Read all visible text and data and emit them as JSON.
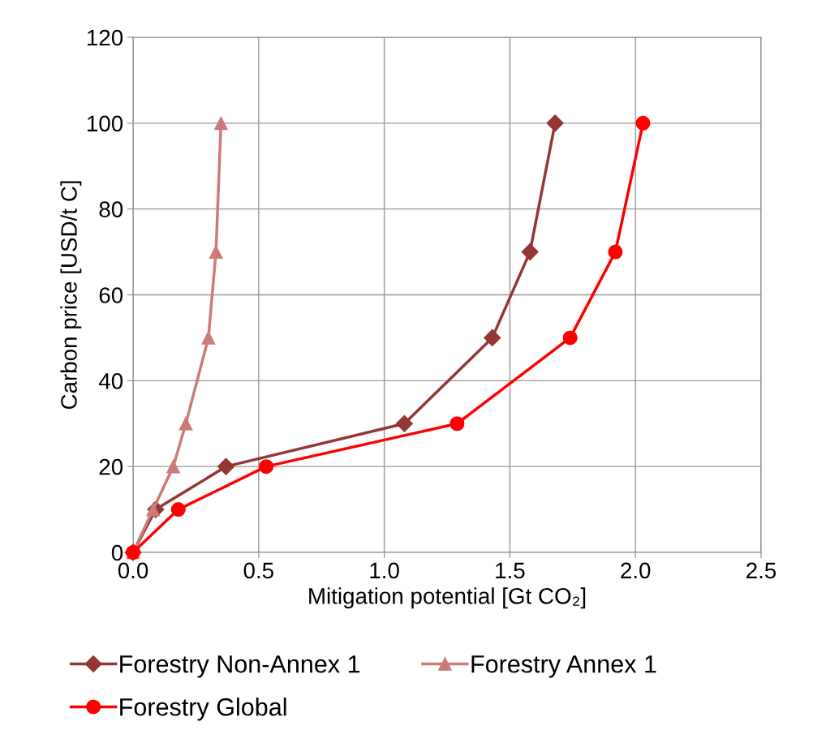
{
  "chart_data": {
    "type": "line",
    "xlabel": "Mitigation potential [Gt CO₂]",
    "ylabel": "Carbon price [USD/t C]",
    "xlim": [
      0,
      2.5
    ],
    "xticks": [
      {
        "value": 0,
        "label": "0.0"
      },
      {
        "value": 0.5,
        "label": "0.5"
      },
      {
        "value": 1,
        "label": "1.0"
      },
      {
        "value": 1.5,
        "label": "1.5"
      },
      {
        "value": 2,
        "label": "2.0"
      },
      {
        "value": 2.5,
        "label": "2.5"
      }
    ],
    "ylim": [
      0,
      120
    ],
    "yticks": [
      0,
      20,
      40,
      60,
      80,
      100,
      120
    ],
    "grid": true,
    "legend": "bottom",
    "line_style": "solid",
    "series": [
      {
        "name": "Forestry Non-Annex 1",
        "color": "#943634",
        "marker": "diamond",
        "x": [
          0,
          0.09,
          0.37,
          1.08,
          1.43,
          1.58,
          1.68
        ],
        "values": [
          0,
          10,
          20,
          30,
          50,
          70,
          100
        ]
      },
      {
        "name": "Forestry Annex 1",
        "color": "#cc7a7a",
        "marker": "triangle",
        "x": [
          0,
          0.08,
          0.16,
          0.21,
          0.3,
          0.33,
          0.35
        ],
        "values": [
          0,
          10,
          20,
          30,
          50,
          70,
          100
        ]
      },
      {
        "name": "Forestry Global",
        "color": "#ff0000",
        "marker": "circle",
        "x": [
          0,
          0.18,
          0.53,
          1.29,
          1.74,
          1.92,
          2.03
        ],
        "values": [
          0,
          10,
          20,
          30,
          50,
          70,
          100
        ]
      }
    ]
  }
}
